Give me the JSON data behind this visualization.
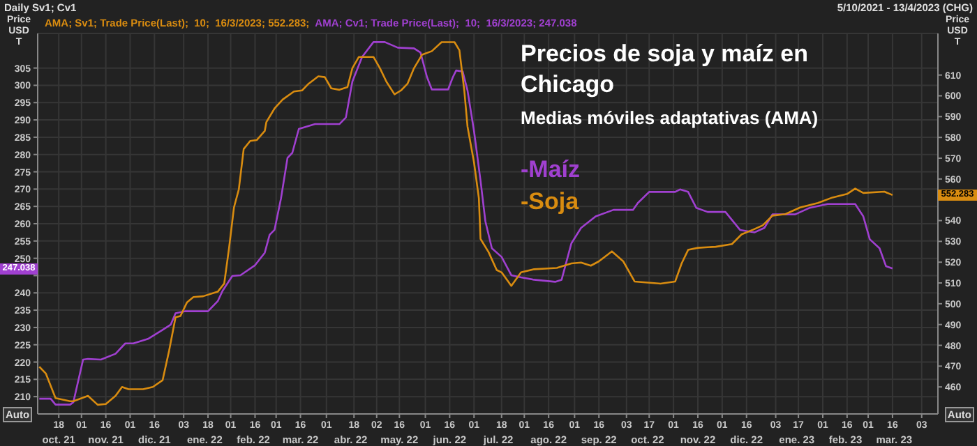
{
  "chart_data": {
    "type": "line",
    "title": "Precios de soja y maíz en Chicago",
    "subtitle": "Medias móviles adaptativas (AMA)",
    "ylabel": "Price USD T",
    "y2label": "Price USD T",
    "annotations": [
      "Daily Sv1; Cv1",
      "5/10/2021 - 13/4/2023 (CHG)",
      "AMA; Sv1; Trade Price(Last);  10;  16/3/2023; 552.283;",
      "AMA; Cv1; Trade Price(Last);  10;  16/3/2023; 247.038",
      "Auto",
      "Auto",
      "247.038",
      "552.283"
    ],
    "xlim": [
      "2021-10-05",
      "2023-04-13"
    ],
    "xticks": [
      {
        "value": "2021-10-18",
        "label": "18"
      },
      {
        "value": "2021-11-01",
        "label": "01"
      },
      {
        "value": "2021-11-16",
        "label": "16"
      },
      {
        "value": "2021-12-01",
        "label": "01"
      },
      {
        "value": "2021-12-16",
        "label": "16"
      },
      {
        "value": "2022-01-03",
        "label": "03"
      },
      {
        "value": "2022-01-18",
        "label": "18"
      },
      {
        "value": "2022-02-01",
        "label": "01"
      },
      {
        "value": "2022-02-16",
        "label": "16"
      },
      {
        "value": "2022-03-01",
        "label": "01"
      },
      {
        "value": "2022-03-16",
        "label": "16"
      },
      {
        "value": "2022-04-01",
        "label": "01"
      },
      {
        "value": "2022-04-18",
        "label": "18"
      },
      {
        "value": "2022-05-02",
        "label": "02"
      },
      {
        "value": "2022-05-16",
        "label": "16"
      },
      {
        "value": "2022-06-01",
        "label": "01"
      },
      {
        "value": "2022-06-16",
        "label": "16"
      },
      {
        "value": "2022-07-01",
        "label": "01"
      },
      {
        "value": "2022-07-18",
        "label": "18"
      },
      {
        "value": "2022-08-01",
        "label": "01"
      },
      {
        "value": "2022-08-16",
        "label": "16"
      },
      {
        "value": "2022-09-01",
        "label": "01"
      },
      {
        "value": "2022-09-16",
        "label": "16"
      },
      {
        "value": "2022-10-03",
        "label": "03"
      },
      {
        "value": "2022-10-17",
        "label": "17"
      },
      {
        "value": "2022-11-01",
        "label": "01"
      },
      {
        "value": "2022-11-16",
        "label": "16"
      },
      {
        "value": "2022-12-01",
        "label": "01"
      },
      {
        "value": "2022-12-16",
        "label": "16"
      },
      {
        "value": "2023-01-03",
        "label": "03"
      },
      {
        "value": "2023-01-17",
        "label": "17"
      },
      {
        "value": "2023-02-01",
        "label": "01"
      },
      {
        "value": "2023-02-16",
        "label": "16"
      },
      {
        "value": "2023-03-01",
        "label": "01"
      },
      {
        "value": "2023-03-16",
        "label": "16"
      },
      {
        "value": "2023-04-03",
        "label": "03"
      }
    ],
    "x2lim": [
      "2021-10-05",
      "2023-04-13"
    ],
    "x2ticks": [
      {
        "value": "2021-10-18",
        "label": "oct. 21"
      },
      {
        "value": "2021-11-16",
        "label": "nov. 21"
      },
      {
        "value": "2021-12-16",
        "label": "dic. 21"
      },
      {
        "value": "2022-01-16",
        "label": "ene. 22"
      },
      {
        "value": "2022-02-15",
        "label": "feb. 22"
      },
      {
        "value": "2022-03-16",
        "label": "mar. 22"
      },
      {
        "value": "2022-04-16",
        "label": "abr. 22"
      },
      {
        "value": "2022-05-16",
        "label": "may. 22"
      },
      {
        "value": "2022-06-16",
        "label": "jun. 22"
      },
      {
        "value": "2022-07-16",
        "label": "jul. 22"
      },
      {
        "value": "2022-08-16",
        "label": "ago. 22"
      },
      {
        "value": "2022-09-16",
        "label": "sep. 22"
      },
      {
        "value": "2022-10-16",
        "label": "oct. 22"
      },
      {
        "value": "2022-11-16",
        "label": "nov. 22"
      },
      {
        "value": "2022-12-16",
        "label": "dic. 22"
      },
      {
        "value": "2023-01-16",
        "label": "ene. 23"
      },
      {
        "value": "2023-02-15",
        "label": "feb. 23"
      },
      {
        "value": "2023-03-17",
        "label": "mar. 23"
      }
    ],
    "ylim": [
      205,
      315
    ],
    "yticks": [
      210,
      215,
      220,
      225,
      230,
      235,
      240,
      {
        "value": 245,
        "label": null
      },
      250,
      255,
      260,
      265,
      270,
      275,
      280,
      285,
      290,
      295,
      300,
      305
    ],
    "y2lim": [
      447,
      630
    ],
    "y2ticks": [
      460,
      470,
      480,
      490,
      500,
      510,
      520,
      530,
      540,
      {
        "value": 550,
        "label": null
      },
      560,
      570,
      580,
      590,
      600,
      610
    ],
    "grid": true,
    "legend": "top",
    "marker": "none",
    "line_style": "solid",
    "series": [
      {
        "name": "-Maíz",
        "color": "#a040d0",
        "x": [
          "2021-10-06",
          "2021-10-13",
          "2021-10-16",
          "2021-10-25",
          "2021-10-27",
          "2021-11-02",
          "2021-11-05",
          "2021-11-13",
          "2021-11-22",
          "2021-11-28",
          "2021-12-03",
          "2021-12-12",
          "2021-12-21",
          "2021-12-26",
          "2021-12-29",
          "2022-01-04",
          "2022-01-18",
          "2022-01-24",
          "2022-01-27",
          "2022-02-02",
          "2022-02-07",
          "2022-02-16",
          "2022-02-22",
          "2022-02-25",
          "2022-02-28",
          "2022-03-04",
          "2022-03-08",
          "2022-03-11",
          "2022-03-15",
          "2022-03-20",
          "2022-03-25",
          "2022-04-09",
          "2022-04-13",
          "2022-04-17",
          "2022-04-23",
          "2022-04-30",
          "2022-05-07",
          "2022-05-15",
          "2022-05-25",
          "2022-05-29",
          "2022-06-02",
          "2022-06-05",
          "2022-06-15",
          "2022-06-18",
          "2022-06-20",
          "2022-06-24",
          "2022-06-27",
          "2022-07-01",
          "2022-07-05",
          "2022-07-08",
          "2022-07-12",
          "2022-07-18",
          "2022-07-24",
          "2022-07-30",
          "2022-08-07",
          "2022-08-20",
          "2022-08-24",
          "2022-08-30",
          "2022-09-05",
          "2022-09-14",
          "2022-09-25",
          "2022-10-07",
          "2022-10-10",
          "2022-10-17",
          "2022-11-02",
          "2022-11-05",
          "2022-11-10",
          "2022-11-15",
          "2022-11-22",
          "2022-12-03",
          "2022-12-12",
          "2022-12-21",
          "2022-12-27",
          "2023-01-01",
          "2023-01-15",
          "2023-01-24",
          "2023-02-04",
          "2023-02-21",
          "2023-02-26",
          "2023-03-02",
          "2023-03-08",
          "2023-03-12",
          "2023-03-16"
        ],
        "values": [
          209.4,
          209.4,
          207.7,
          207.7,
          208.4,
          220.7,
          220.9,
          220.7,
          222.4,
          225.4,
          225.4,
          226.7,
          229.3,
          230.8,
          234.1,
          234.7,
          234.7,
          237.6,
          240.6,
          244.9,
          245.1,
          248,
          251.6,
          256.8,
          258.2,
          267.3,
          279,
          280.5,
          287.4,
          288.1,
          288.8,
          288.8,
          290.7,
          301.1,
          308.2,
          312.5,
          312.5,
          310.9,
          310.7,
          309.5,
          302.4,
          298.8,
          298.8,
          302.4,
          304.3,
          304,
          298.5,
          286.8,
          272.5,
          260.7,
          252.9,
          250.4,
          245.1,
          244.5,
          243.8,
          243.2,
          243.8,
          254.3,
          258.8,
          262.1,
          264,
          264,
          266,
          269.2,
          269.2,
          269.9,
          269.2,
          264.6,
          263.4,
          263.4,
          258.2,
          257.5,
          258.8,
          262.7,
          262.7,
          264.6,
          265.7,
          265.7,
          262.1,
          255.5,
          252.9,
          247.7,
          247.038
        ]
      },
      {
        "name": "-Soja",
        "color": "#d98c10",
        "axis": "y2",
        "x": [
          "2021-10-06",
          "2021-10-10",
          "2021-10-16",
          "2021-10-25",
          "2021-10-27",
          "2021-11-05",
          "2021-11-11",
          "2021-11-16",
          "2021-11-22",
          "2021-11-26",
          "2021-11-30",
          "2021-12-09",
          "2021-12-15",
          "2021-12-21",
          "2021-12-25",
          "2021-12-29",
          "2022-01-01",
          "2022-01-05",
          "2022-01-09",
          "2022-01-15",
          "2022-01-24",
          "2022-01-28",
          "2022-01-31",
          "2022-02-03",
          "2022-02-06",
          "2022-02-09",
          "2022-02-13",
          "2022-02-17",
          "2022-02-22",
          "2022-02-23",
          "2022-02-28",
          "2022-03-05",
          "2022-03-12",
          "2022-03-17",
          "2022-03-21",
          "2022-03-27",
          "2022-03-31",
          "2022-04-04",
          "2022-04-09",
          "2022-04-14",
          "2022-04-17",
          "2022-04-21",
          "2022-04-30",
          "2022-05-04",
          "2022-05-08",
          "2022-05-13",
          "2022-05-17",
          "2022-05-21",
          "2022-05-25",
          "2022-05-30",
          "2022-06-05",
          "2022-06-11",
          "2022-06-19",
          "2022-06-22",
          "2022-06-25",
          "2022-06-27",
          "2022-07-01",
          "2022-07-04",
          "2022-07-05",
          "2022-07-10",
          "2022-07-15",
          "2022-07-18",
          "2022-07-24",
          "2022-07-30",
          "2022-08-07",
          "2022-08-21",
          "2022-08-30",
          "2022-09-05",
          "2022-09-11",
          "2022-09-16",
          "2022-09-24",
          "2022-10-01",
          "2022-10-08",
          "2022-10-24",
          "2022-11-02",
          "2022-11-06",
          "2022-11-10",
          "2022-11-16",
          "2022-11-27",
          "2022-12-07",
          "2022-12-13",
          "2022-12-20",
          "2022-12-26",
          "2023-01-01",
          "2023-01-09",
          "2023-01-18",
          "2023-01-29",
          "2023-02-07",
          "2023-02-16",
          "2023-02-21",
          "2023-02-26",
          "2023-03-11",
          "2023-03-16"
        ],
        "values": [
          469.7,
          466.5,
          454.6,
          453.1,
          453.1,
          455.7,
          451.4,
          451.8,
          455.7,
          460,
          458.9,
          458.9,
          460,
          463.2,
          477.3,
          493.5,
          494.1,
          500.6,
          503.2,
          503.6,
          505.8,
          509.7,
          526.9,
          546.3,
          555,
          574.4,
          578.3,
          578.7,
          583.1,
          587.4,
          593.9,
          598.2,
          602.1,
          602.6,
          605.8,
          609.4,
          609,
          603.6,
          602.9,
          604.2,
          613.3,
          618.7,
          618.7,
          613.3,
          606.8,
          600.7,
          602.6,
          605.8,
          613.3,
          619.8,
          621.5,
          625.8,
          625.8,
          621.9,
          602.6,
          585.2,
          568,
          550.7,
          531.2,
          524.8,
          516.2,
          515.1,
          508.6,
          515.1,
          516.6,
          517.2,
          519.4,
          519.8,
          518.3,
          520.4,
          525.2,
          520.4,
          510.7,
          509.7,
          510.7,
          519.4,
          525.9,
          526.9,
          527.4,
          528.7,
          533.4,
          535.6,
          537.7,
          542.4,
          543.1,
          546.3,
          548.5,
          551.1,
          552.8,
          555.4,
          553.3,
          553.9,
          552.283
        ]
      }
    ]
  }
}
